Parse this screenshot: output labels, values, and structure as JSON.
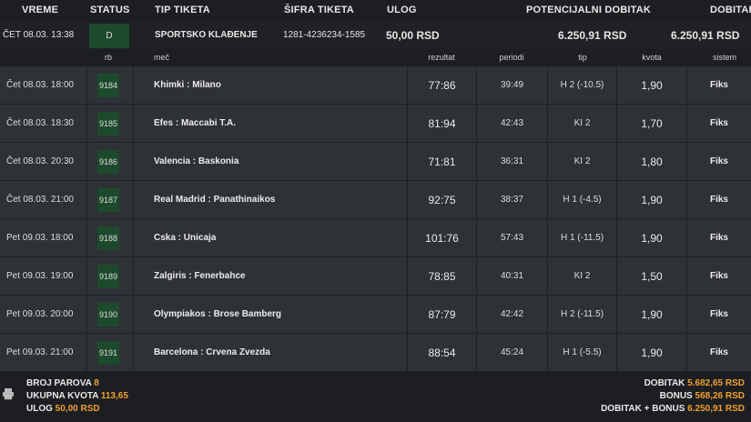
{
  "header": {
    "vreme": "VREME",
    "status": "STATUS",
    "tip_tiketa": "TIP TIKETA",
    "sifra_tiketa": "ŠIFRA TIKETA",
    "ulog": "ULOG",
    "potencijalni_dobitak": "POTENCIJALNI DOBITAK",
    "dobitak": "DOBITAK"
  },
  "ticket": {
    "vreme": "ČET 08.03. 13:38",
    "status": "D",
    "tip": "SPORTSKO KLAĐENJE",
    "sifra": "1281-4236234-1585",
    "ulog": "50,00 RSD",
    "potencijalni_dobitak": "6.250,91 RSD",
    "dobitak": "6.250,91 RSD"
  },
  "columns": {
    "rb": "rb",
    "mec": "meč",
    "rezultat": "rezultat",
    "periodi": "periodi",
    "tip": "tip",
    "kvota": "kvota",
    "sistem": "sistem"
  },
  "rows": [
    {
      "vreme": "Čet 08.03. 18:00",
      "rb": "9184",
      "mec": "Khimki : Milano",
      "rezultat": "77:86",
      "periodi": "39:49",
      "tip": "H 2 (-10.5)",
      "kvota": "1,90",
      "sistem": "Fiks"
    },
    {
      "vreme": "Čet 08.03. 18:30",
      "rb": "9185",
      "mec": "Efes : Maccabi T.A.",
      "rezultat": "81:94",
      "periodi": "42:43",
      "tip": "KI 2",
      "kvota": "1,70",
      "sistem": "Fiks"
    },
    {
      "vreme": "Čet 08.03. 20:30",
      "rb": "9186",
      "mec": "Valencia : Baskonia",
      "rezultat": "71:81",
      "periodi": "36:31",
      "tip": "KI 2",
      "kvota": "1,80",
      "sistem": "Fiks"
    },
    {
      "vreme": "Čet 08.03. 21:00",
      "rb": "9187",
      "mec": "Real Madrid : Panathinaikos",
      "rezultat": "92:75",
      "periodi": "38:37",
      "tip": "H 1 (-4.5)",
      "kvota": "1,90",
      "sistem": "Fiks"
    },
    {
      "vreme": "Pet 09.03. 18:00",
      "rb": "9188",
      "mec": "Cska : Unicaja",
      "rezultat": "101:76",
      "periodi": "57:43",
      "tip": "H 1 (-11.5)",
      "kvota": "1,90",
      "sistem": "Fiks"
    },
    {
      "vreme": "Pet 09.03. 19:00",
      "rb": "9189",
      "mec": "Zalgiris : Fenerbahce",
      "rezultat": "78:85",
      "periodi": "40:31",
      "tip": "KI 2",
      "kvota": "1,50",
      "sistem": "Fiks"
    },
    {
      "vreme": "Pet 09.03. 20:00",
      "rb": "9190",
      "mec": "Olympiakos : Brose Bamberg",
      "rezultat": "87:79",
      "periodi": "42:42",
      "tip": "H 2 (-11.5)",
      "kvota": "1,90",
      "sistem": "Fiks"
    },
    {
      "vreme": "Pet 09.03. 21:00",
      "rb": "9191",
      "mec": "Barcelona : Crvena Zvezda",
      "rezultat": "88:54",
      "periodi": "45:24",
      "tip": "H 1 (-5.5)",
      "kvota": "1,90",
      "sistem": "Fiks"
    }
  ],
  "footer": {
    "broj_parova_label": "BROJ PAROVA",
    "broj_parova": "8",
    "ukupna_kvota_label": "UKUPNA KVOTA",
    "ukupna_kvota": "113,65",
    "ulog_label": "ULOG",
    "ulog": "50,00 RSD",
    "dobitak_label": "DOBITAK",
    "dobitak": "5.682,65 RSD",
    "bonus_label": "BONUS",
    "bonus": "568,26 RSD",
    "dobitak_bonus_label": "DOBITAK + BONUS",
    "dobitak_bonus": "6.250,91 RSD"
  },
  "icons": {
    "print": "printer-icon"
  },
  "colors": {
    "accent": "#f0a030",
    "status_green": "#1d4a2c",
    "row_bg": "#2e3136"
  }
}
